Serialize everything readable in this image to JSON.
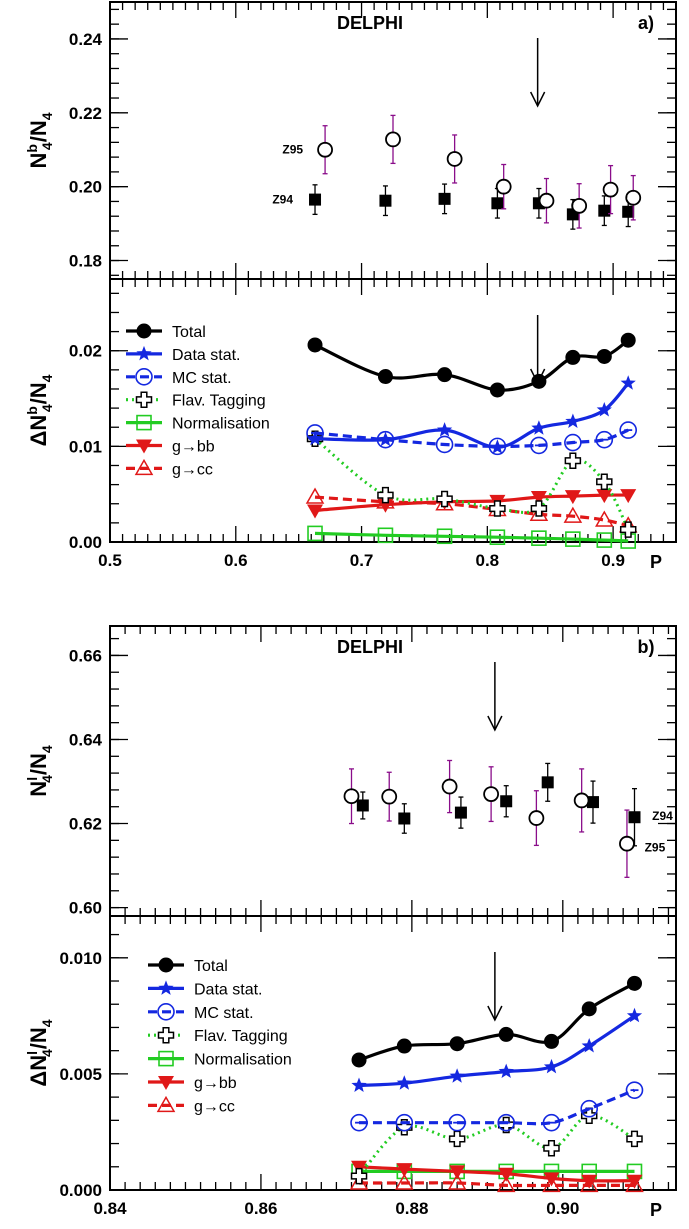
{
  "chart_data": [
    {
      "type": "scatter",
      "panel": "a-top",
      "title": "DELPHI",
      "corner_label": "a)",
      "ylabel_main": "N",
      "ylabel_sub": "4",
      "ylabel_sup": "b",
      "ylabel_tail": "/N",
      "ylabel_tail_sub": "4",
      "ylim": [
        0.175,
        0.25
      ],
      "yticks": [
        "0.18",
        "0.20",
        "0.22",
        "0.24"
      ],
      "xlim": [
        0.5,
        0.95
      ],
      "arrow_x": 0.84,
      "series": [
        {
          "name": "Z94",
          "marker": "filled-square",
          "color": "#000000",
          "x": [
            0.663,
            0.719,
            0.766,
            0.808,
            0.841,
            0.868,
            0.893,
            0.912
          ],
          "y": [
            0.1965,
            0.1962,
            0.1967,
            0.1955,
            0.1955,
            0.1925,
            0.1935,
            0.1932
          ],
          "err": [
            0.004,
            0.004,
            0.004,
            0.004,
            0.004,
            0.004,
            0.004,
            0.004
          ]
        },
        {
          "name": "Z95",
          "marker": "open-circle",
          "color": "#000000",
          "x": [
            0.671,
            0.725,
            0.774,
            0.813,
            0.847,
            0.873,
            0.898,
            0.916
          ],
          "y": [
            0.21,
            0.2128,
            0.2075,
            0.2,
            0.1962,
            0.1948,
            0.1992,
            0.197
          ],
          "err": [
            0.0065,
            0.0065,
            0.0065,
            0.006,
            0.006,
            0.006,
            0.0065,
            0.006
          ]
        }
      ]
    },
    {
      "type": "line",
      "panel": "a-bottom",
      "ylabel_main": "ΔN",
      "ylabel_sub": "4",
      "ylabel_sup": "b",
      "ylabel_tail": "/N",
      "ylabel_tail_sub": "4",
      "ylim": [
        0,
        0.0275
      ],
      "yticks": [
        "0.00",
        "0.01",
        "0.02"
      ],
      "xlim": [
        0.5,
        0.95
      ],
      "xticks": [
        "0.5",
        "0.6",
        "0.7",
        "0.8",
        "0.9"
      ],
      "xlabel": "P",
      "arrow_x": 0.84,
      "x": [
        0.663,
        0.719,
        0.766,
        0.808,
        0.841,
        0.868,
        0.893,
        0.912
      ],
      "series": [
        {
          "name": "Total",
          "color": "#000000",
          "marker": "filled-circle",
          "dash": "solid",
          "values": [
            0.0206,
            0.0173,
            0.0175,
            0.0159,
            0.0168,
            0.0193,
            0.0194,
            0.0211
          ]
        },
        {
          "name": "Data stat.",
          "color": "#1428e0",
          "marker": "star",
          "dash": "solid",
          "values": [
            0.0108,
            0.0107,
            0.0117,
            0.0099,
            0.0119,
            0.0126,
            0.0138,
            0.0166
          ]
        },
        {
          "name": "MC stat.",
          "color": "#1428e0",
          "marker": "circle-dash",
          "dash": "dashed",
          "values": [
            0.0114,
            0.0107,
            0.0102,
            0.01,
            0.0101,
            0.0104,
            0.0107,
            0.0117
          ]
        },
        {
          "name": "Flav. Tagging",
          "color": "#22cc22",
          "marker": "open-cross",
          "dash": "dotted",
          "values": [
            0.0108,
            0.0049,
            0.0045,
            0.0035,
            0.0035,
            0.0085,
            0.0063,
            0.0013
          ]
        },
        {
          "name": "Normalisation",
          "color": "#22cc22",
          "marker": "open-square",
          "dash": "solid",
          "values": [
            0.0009,
            0.0007,
            0.0006,
            0.0005,
            0.0004,
            0.0003,
            0.0002,
            0.0001
          ]
        },
        {
          "name": "g→bb",
          "color": "#e01818",
          "marker": "filled-triangle-down",
          "dash": "solid",
          "values": [
            0.0033,
            0.0039,
            0.0042,
            0.0043,
            0.0047,
            0.0048,
            0.0049,
            0.0049
          ]
        },
        {
          "name": "g→cc",
          "color": "#e01818",
          "marker": "open-triangle-up",
          "dash": "dashed",
          "values": [
            0.0047,
            0.0042,
            0.004,
            0.0034,
            0.0029,
            0.0027,
            0.0023,
            0.0017
          ]
        }
      ]
    },
    {
      "type": "scatter",
      "panel": "b-top",
      "title": "DELPHI",
      "corner_label": "b)",
      "ylabel_main": "N",
      "ylabel_sub": "4",
      "ylabel_sup": "l",
      "ylabel_tail": "/N",
      "ylabel_tail_sub": "4",
      "ylim": [
        0.598,
        0.667
      ],
      "yticks": [
        "0.60",
        "0.62",
        "0.64",
        "0.66"
      ],
      "xlim": [
        0.84,
        0.915
      ],
      "arrow_x": 0.891,
      "series": [
        {
          "name": "Z94",
          "marker": "filled-square",
          "color": "#000000",
          "x": [
            0.8735,
            0.879,
            0.8865,
            0.8925,
            0.898,
            0.904,
            0.9095
          ],
          "y": [
            0.6243,
            0.6212,
            0.6226,
            0.6253,
            0.6298,
            0.6251,
            0.6215
          ],
          "err": [
            0.0032,
            0.0035,
            0.0037,
            0.0037,
            0.0045,
            0.005,
            0.0068
          ]
        },
        {
          "name": "Z95",
          "marker": "open-circle",
          "color": "#000000",
          "x": [
            0.872,
            0.877,
            0.885,
            0.8905,
            0.8965,
            0.9025,
            0.9085
          ],
          "y": [
            0.6265,
            0.6264,
            0.6288,
            0.627,
            0.6213,
            0.6255,
            0.6152
          ],
          "err": [
            0.0065,
            0.0058,
            0.0062,
            0.0065,
            0.0065,
            0.0075,
            0.008
          ]
        }
      ]
    },
    {
      "type": "line",
      "panel": "b-bottom",
      "ylabel_main": "ΔN",
      "ylabel_sub": "4",
      "ylabel_sup": "l",
      "ylabel_tail": "/N",
      "ylabel_tail_sub": "4",
      "ylim": [
        0,
        0.0118
      ],
      "yticks": [
        "0.000",
        "0.005",
        "0.010"
      ],
      "xlim": [
        0.84,
        0.915
      ],
      "xticks": [
        "0.84",
        "0.86",
        "0.88",
        "0.90"
      ],
      "xlabel": "P",
      "arrow_x": 0.891,
      "x": [
        0.873,
        0.879,
        0.886,
        0.8925,
        0.8985,
        0.9035,
        0.9095
      ],
      "series": [
        {
          "name": "Total",
          "color": "#000000",
          "marker": "filled-circle",
          "dash": "solid",
          "values": [
            0.0056,
            0.0062,
            0.0063,
            0.0067,
            0.0064,
            0.0078,
            0.0089
          ]
        },
        {
          "name": "Data stat.",
          "color": "#1428e0",
          "marker": "star",
          "dash": "solid",
          "values": [
            0.0045,
            0.0046,
            0.0049,
            0.0051,
            0.0053,
            0.0062,
            0.0075
          ]
        },
        {
          "name": "MC stat.",
          "color": "#1428e0",
          "marker": "circle-dash",
          "dash": "dashed",
          "values": [
            0.0029,
            0.0029,
            0.0029,
            0.0029,
            0.0029,
            0.0035,
            0.0043
          ]
        },
        {
          "name": "Flav. Tagging",
          "color": "#22cc22",
          "marker": "open-cross",
          "dash": "dotted",
          "values": [
            0.0006,
            0.0027,
            0.0022,
            0.0028,
            0.0018,
            0.0032,
            0.0022
          ]
        },
        {
          "name": "Normalisation",
          "color": "#22cc22",
          "marker": "open-square",
          "dash": "solid",
          "values": [
            0.0008,
            0.0008,
            0.0008,
            0.0008,
            0.0008,
            0.0008,
            0.0008
          ]
        },
        {
          "name": "g→bb",
          "color": "#e01818",
          "marker": "filled-triangle-down",
          "dash": "solid",
          "values": [
            0.001,
            0.0009,
            0.0008,
            0.0007,
            0.0005,
            0.0004,
            0.0004
          ]
        },
        {
          "name": "g→cc",
          "color": "#e01818",
          "marker": "open-triangle-up",
          "dash": "dashed",
          "values": [
            0.0003,
            0.0003,
            0.0003,
            0.0002,
            0.0002,
            0.0002,
            0.0002
          ]
        }
      ]
    }
  ]
}
